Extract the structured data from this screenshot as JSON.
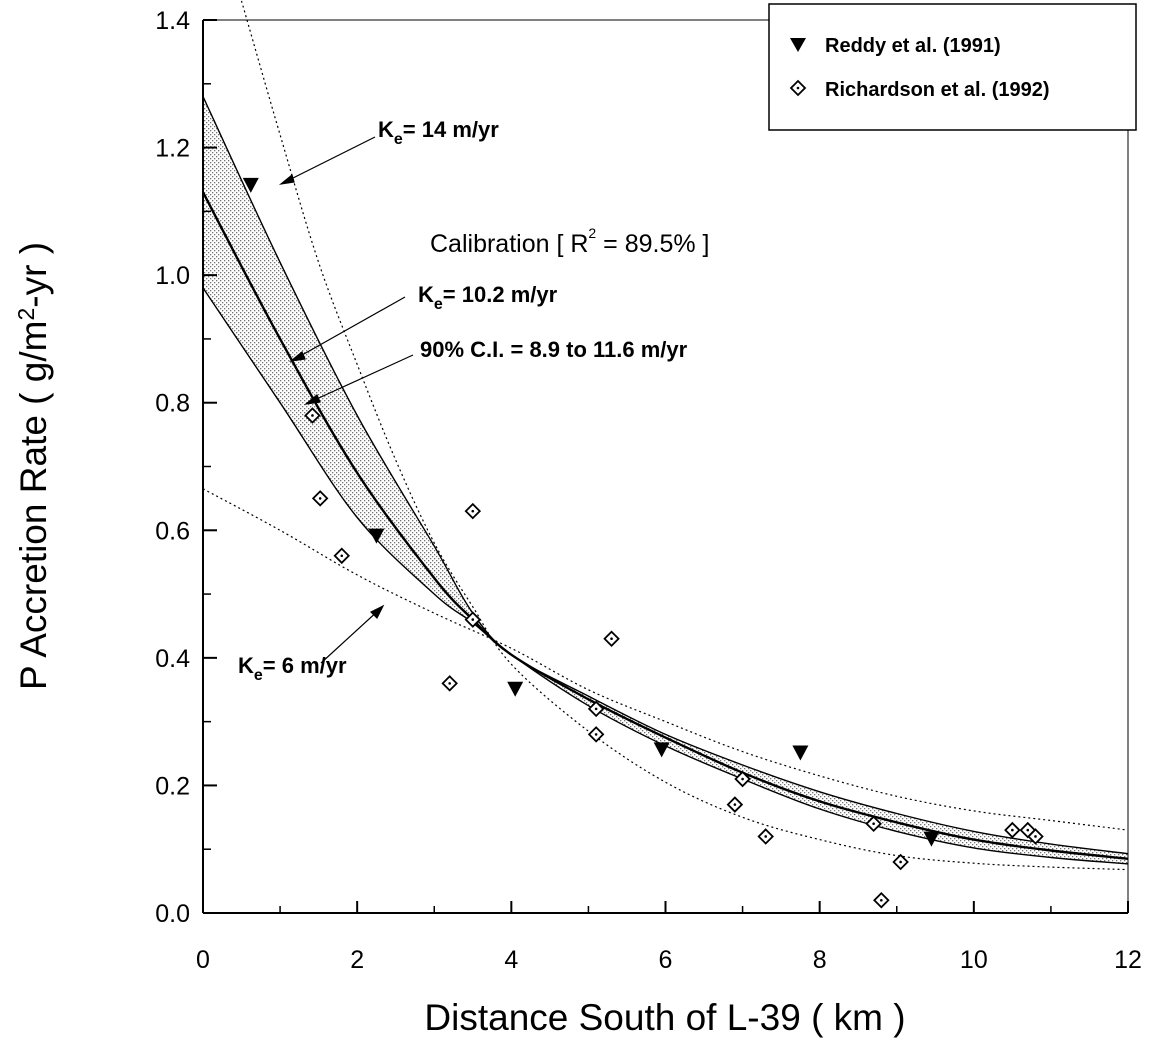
{
  "chart_data": {
    "type": "scatter",
    "xlabel": "Distance South of L-39  ( km )",
    "ylabel": "P Accretion Rate  ( g/m²-yr )",
    "xlim": [
      0,
      12
    ],
    "ylim": [
      0,
      1.4
    ],
    "x_ticks": [
      "0",
      "2",
      "4",
      "6",
      "8",
      "10",
      "12"
    ],
    "y_ticks": [
      "0.0",
      "0.2",
      "0.4",
      "0.6",
      "0.8",
      "1.0",
      "1.2",
      "1.4"
    ],
    "grid": false,
    "legend_position": "top-right",
    "series": [
      {
        "name": "Reddy et al. (1991)",
        "marker": "filled-down-triangle",
        "points": [
          {
            "x": 0.62,
            "y": 1.14
          },
          {
            "x": 2.25,
            "y": 0.59
          },
          {
            "x": 4.05,
            "y": 0.35
          },
          {
            "x": 5.95,
            "y": 0.255
          },
          {
            "x": 7.75,
            "y": 0.25
          },
          {
            "x": 9.45,
            "y": 0.115
          }
        ]
      },
      {
        "name": "Richardson et al. (1992)",
        "marker": "open-diamond",
        "points": [
          {
            "x": 1.42,
            "y": 0.78
          },
          {
            "x": 1.52,
            "y": 0.65
          },
          {
            "x": 1.8,
            "y": 0.56
          },
          {
            "x": 3.2,
            "y": 0.36
          },
          {
            "x": 3.5,
            "y": 0.63
          },
          {
            "x": 3.5,
            "y": 0.46
          },
          {
            "x": 5.1,
            "y": 0.32
          },
          {
            "x": 5.1,
            "y": 0.28
          },
          {
            "x": 5.3,
            "y": 0.43
          },
          {
            "x": 6.9,
            "y": 0.17
          },
          {
            "x": 7.0,
            "y": 0.21
          },
          {
            "x": 7.3,
            "y": 0.12
          },
          {
            "x": 8.7,
            "y": 0.14
          },
          {
            "x": 8.8,
            "y": 0.02
          },
          {
            "x": 9.05,
            "y": 0.08
          },
          {
            "x": 10.5,
            "y": 0.13
          },
          {
            "x": 10.7,
            "y": 0.13
          },
          {
            "x": 10.8,
            "y": 0.12
          }
        ]
      }
    ],
    "curves": [
      {
        "id": "calibration",
        "style": "solid-bold",
        "points": [
          [
            0,
            1.13
          ],
          [
            1,
            0.9
          ],
          [
            2,
            0.69
          ],
          [
            3,
            0.525
          ],
          [
            3.5,
            0.46
          ],
          [
            4,
            0.405
          ],
          [
            5,
            0.335
          ],
          [
            6,
            0.275
          ],
          [
            7,
            0.22
          ],
          [
            8,
            0.175
          ],
          [
            9,
            0.142
          ],
          [
            10,
            0.115
          ],
          [
            11,
            0.098
          ],
          [
            12,
            0.085
          ]
        ]
      },
      {
        "id": "ci-upper",
        "style": "solid-thin",
        "points": [
          [
            0,
            1.28
          ],
          [
            1,
            1.02
          ],
          [
            2,
            0.78
          ],
          [
            3,
            0.575
          ],
          [
            3.5,
            0.47
          ],
          [
            4,
            0.405
          ],
          [
            5,
            0.34
          ],
          [
            6,
            0.28
          ],
          [
            7,
            0.232
          ],
          [
            8,
            0.19
          ],
          [
            9,
            0.156
          ],
          [
            10,
            0.128
          ],
          [
            11,
            0.108
          ],
          [
            12,
            0.093
          ]
        ]
      },
      {
        "id": "ci-lower",
        "style": "solid-thin",
        "points": [
          [
            0,
            0.98
          ],
          [
            1,
            0.8
          ],
          [
            2,
            0.62
          ],
          [
            3,
            0.5
          ],
          [
            3.5,
            0.455
          ],
          [
            4,
            0.405
          ],
          [
            5,
            0.325
          ],
          [
            6,
            0.262
          ],
          [
            7,
            0.21
          ],
          [
            8,
            0.163
          ],
          [
            9,
            0.128
          ],
          [
            10,
            0.102
          ],
          [
            11,
            0.087
          ],
          [
            12,
            0.077
          ]
        ]
      },
      {
        "id": "ke14",
        "style": "dotted",
        "points": [
          [
            0.5,
            1.43
          ],
          [
            1,
            1.22
          ],
          [
            1.5,
            1.02
          ],
          [
            2,
            0.86
          ],
          [
            2.5,
            0.71
          ],
          [
            3,
            0.58
          ],
          [
            3.5,
            0.48
          ],
          [
            4,
            0.39
          ],
          [
            5,
            0.285
          ],
          [
            6,
            0.205
          ],
          [
            7,
            0.15
          ],
          [
            8,
            0.115
          ],
          [
            9,
            0.09
          ],
          [
            10,
            0.078
          ],
          [
            11,
            0.072
          ],
          [
            12,
            0.068
          ]
        ]
      },
      {
        "id": "ke6",
        "style": "dotted",
        "points": [
          [
            0,
            0.665
          ],
          [
            1,
            0.6
          ],
          [
            2,
            0.53
          ],
          [
            3,
            0.47
          ],
          [
            4,
            0.415
          ],
          [
            5,
            0.35
          ],
          [
            6,
            0.3
          ],
          [
            7,
            0.253
          ],
          [
            8,
            0.215
          ],
          [
            9,
            0.183
          ],
          [
            10,
            0.16
          ],
          [
            11,
            0.145
          ],
          [
            12,
            0.13
          ]
        ]
      }
    ],
    "legend": {
      "reddy_label": "Reddy et al. (1991)",
      "richardson_label": "Richardson et al. (1992)"
    },
    "annotations": {
      "ke14_k": "K",
      "ke14_sub": "e",
      "ke14_rest": "= 14 m/yr",
      "calib_text": "Calibration  [ R",
      "calib_sup": "2",
      "calib_rest": " = 89.5% ]",
      "ke102_k": "K",
      "ke102_sub": "e",
      "ke102_rest": "= 10.2  m/yr",
      "ci_text": "90% C.I. =  8.9 to 11.6 m/yr",
      "ke6_k": "K",
      "ke6_sub": "e",
      "ke6_rest": "= 6 m/yr"
    }
  }
}
